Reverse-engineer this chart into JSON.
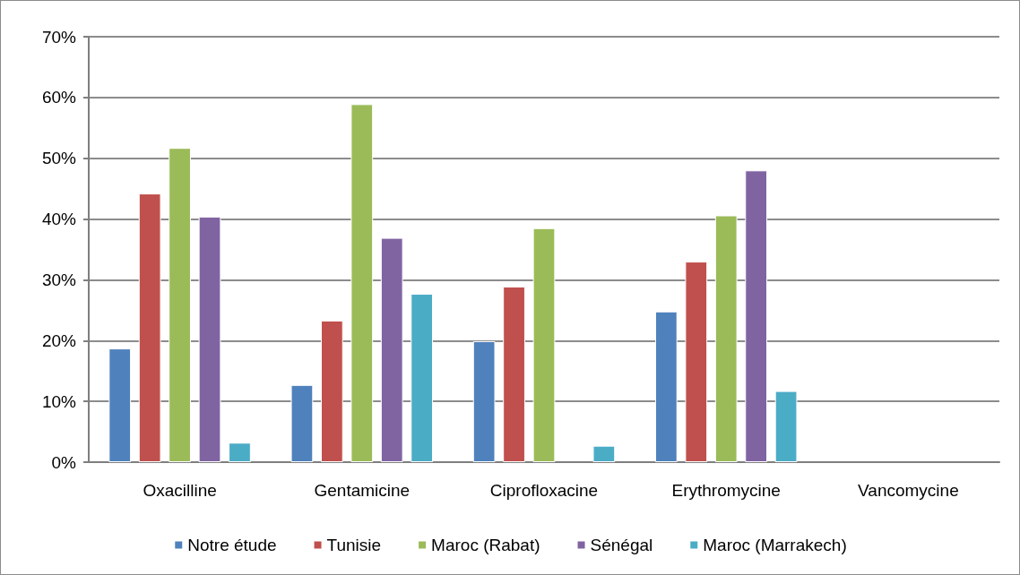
{
  "chart_data": {
    "type": "bar",
    "categories": [
      "Oxacilline",
      "Gentamicine",
      "Ciprofloxacine",
      "Erythromycine",
      "Vancomycine"
    ],
    "series": [
      {
        "name": "Notre étude",
        "color": "#4f81bd",
        "values": [
          18.7,
          12.7,
          19.9,
          24.8,
          null
        ]
      },
      {
        "name": "Tunisie",
        "color": "#c0504d",
        "values": [
          44.2,
          23.3,
          28.9,
          33.0,
          null
        ]
      },
      {
        "name": "Maroc (Rabat)",
        "color": "#9bbb59",
        "values": [
          51.7,
          58.9,
          38.5,
          40.6,
          null
        ]
      },
      {
        "name": "Sénégal",
        "color": "#8064a2",
        "values": [
          40.4,
          36.9,
          null,
          48.0,
          null
        ]
      },
      {
        "name": "Maroc (Marrakech)",
        "color": "#4bacc6",
        "values": [
          3.2,
          27.7,
          2.7,
          11.7,
          null
        ]
      }
    ],
    "ylim": [
      0,
      70
    ],
    "yticks": [
      {
        "value": 0,
        "label": "0%"
      },
      {
        "value": 10,
        "label": "10%"
      },
      {
        "value": 20,
        "label": "20%"
      },
      {
        "value": 30,
        "label": "30%"
      },
      {
        "value": 40,
        "label": "40%"
      },
      {
        "value": 50,
        "label": "50%"
      },
      {
        "value": 60,
        "label": "60%"
      },
      {
        "value": 70,
        "label": "70%"
      }
    ],
    "grid": "y",
    "legend": "bottom"
  }
}
